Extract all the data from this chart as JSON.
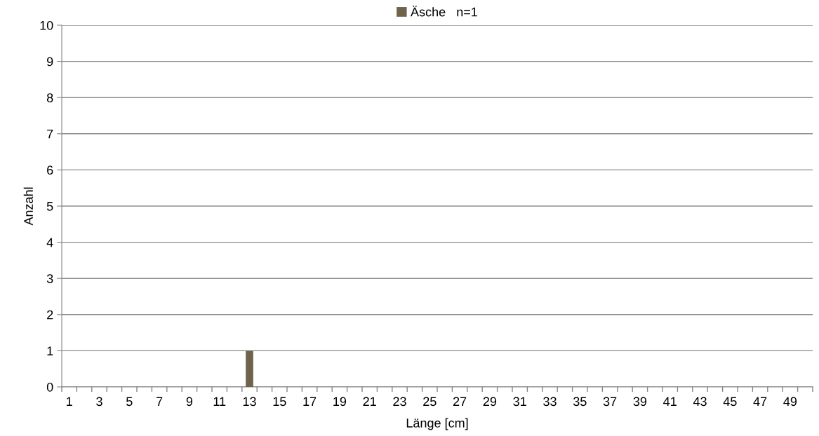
{
  "chart_data": {
    "type": "bar",
    "xlabel": "Länge [cm]",
    "ylabel": "Anzahl",
    "categories": [
      "1",
      null,
      "3",
      null,
      "5",
      null,
      "7",
      null,
      "9",
      null,
      "11",
      null,
      "13",
      null,
      "15",
      null,
      "17",
      null,
      "19",
      null,
      "21",
      null,
      "23",
      null,
      "25",
      null,
      "27",
      null,
      "29",
      null,
      "31",
      null,
      "33",
      null,
      "35",
      null,
      "37",
      null,
      "39",
      null,
      "41",
      null,
      "43",
      null,
      "45",
      null,
      "47",
      null,
      "49",
      null
    ],
    "series": [
      {
        "name": "Äsche   n=1",
        "color": "#6f644b",
        "values": [
          0,
          0,
          0,
          0,
          0,
          0,
          0,
          0,
          0,
          0,
          0,
          0,
          1,
          0,
          0,
          0,
          0,
          0,
          0,
          0,
          0,
          0,
          0,
          0,
          0,
          0,
          0,
          0,
          0,
          0,
          0,
          0,
          0,
          0,
          0,
          0,
          0,
          0,
          0,
          0,
          0,
          0,
          0,
          0,
          0,
          0,
          0,
          0,
          0,
          0
        ]
      }
    ],
    "ylim": [
      0,
      10
    ],
    "yticks": [
      0,
      1,
      2,
      3,
      4,
      5,
      6,
      7,
      8,
      9,
      10
    ],
    "grid": "y",
    "legend": "top"
  }
}
